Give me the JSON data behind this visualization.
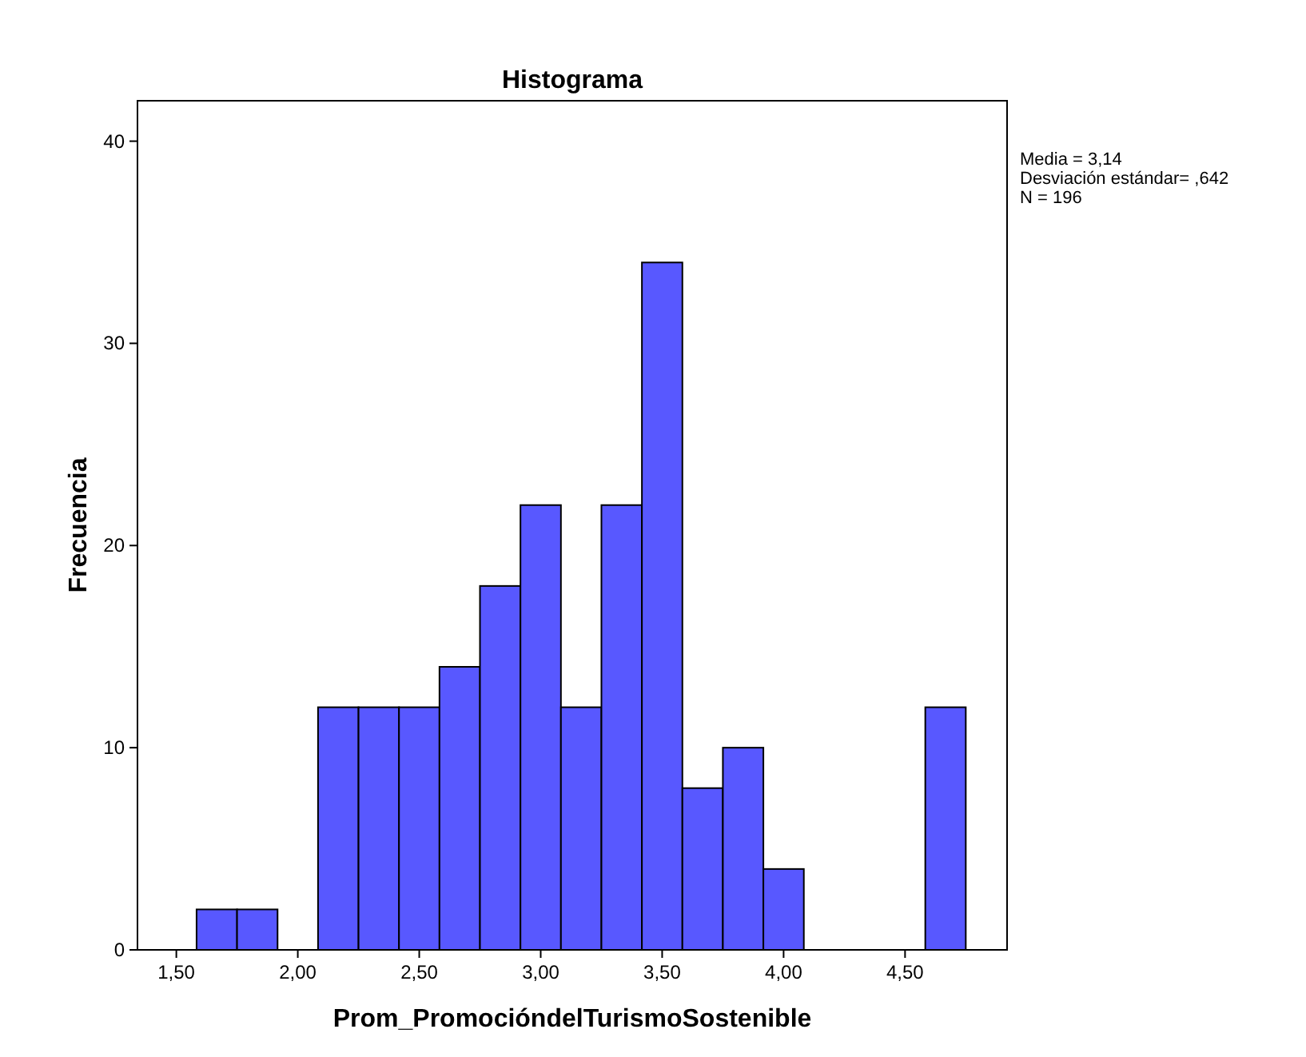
{
  "chart_data": {
    "type": "histogram",
    "title": "Histograma",
    "xlabel": "Prom_PromocióndelTurismoSostenible",
    "ylabel": "Frecuencia",
    "bins": [
      1.5833,
      1.75,
      1.9167,
      2.0833,
      2.25,
      2.4167,
      2.5833,
      2.75,
      2.9167,
      3.0833,
      3.25,
      3.4167,
      3.5833,
      3.75,
      3.9167,
      4.0833,
      4.25,
      4.4167,
      4.5833,
      4.75
    ],
    "values": [
      2,
      2,
      0,
      12,
      12,
      12,
      14,
      18,
      22,
      12,
      22,
      34,
      8,
      10,
      4,
      0,
      0,
      0,
      12
    ],
    "color": "#5858ff",
    "xlim": [
      1.34,
      4.92
    ],
    "ylim": [
      0,
      42
    ],
    "xticks": [
      {
        "value": 1.5,
        "label": "1,50"
      },
      {
        "value": 2,
        "label": "2,00"
      },
      {
        "value": 2.5,
        "label": "2,50"
      },
      {
        "value": 3,
        "label": "3,00"
      },
      {
        "value": 3.5,
        "label": "3,50"
      },
      {
        "value": 4,
        "label": "4,00"
      },
      {
        "value": 4.5,
        "label": "4,50"
      }
    ],
    "yticks": [
      0,
      10,
      20,
      30,
      40
    ],
    "annotations": [
      "Media = 3,14",
      "Desviación estándar= ,642",
      "N = 196"
    ]
  }
}
